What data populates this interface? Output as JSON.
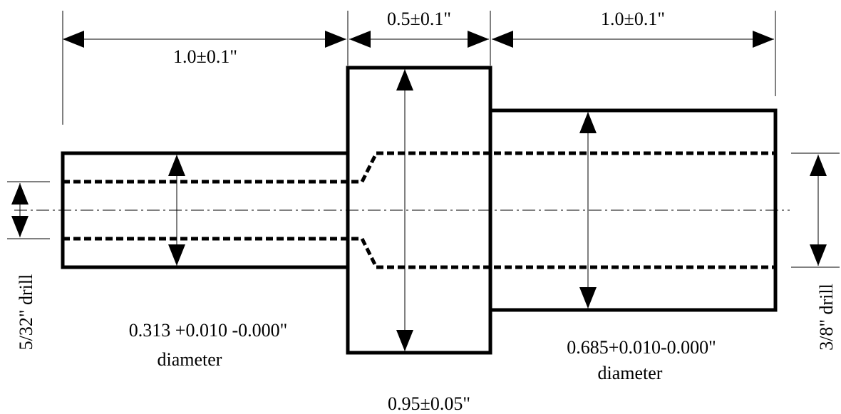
{
  "dimensions": {
    "left_length": "1.0±0.1\"",
    "middle_length": "0.5±0.1\"",
    "right_length": "1.0±0.1\"",
    "left_drill": "5/32\" drill",
    "right_drill": "3/8\" drill",
    "left_diameter_value": "0.313 +0.010 -0.000\"",
    "left_diameter_word": "diameter",
    "middle_diameter": "0.95±0.05\"",
    "right_diameter_value": "0.685+0.010-0.000\"",
    "right_diameter_word": "diameter"
  },
  "colors": {
    "line": "#000000",
    "background": "#ffffff"
  }
}
